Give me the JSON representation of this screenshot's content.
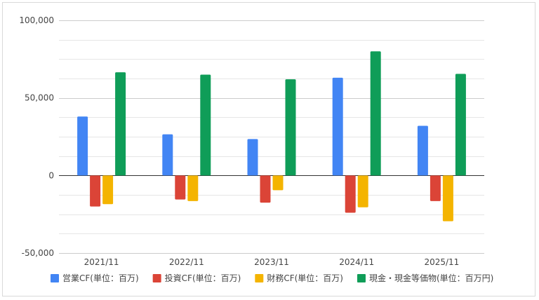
{
  "chart_data": {
    "type": "bar",
    "categories": [
      "2021/11",
      "2022/11",
      "2023/11",
      "2024/11",
      "2025/11"
    ],
    "series": [
      {
        "name": "営業CF(単位：百万)",
        "color": "#4285f4",
        "values": [
          38000,
          26500,
          23500,
          63000,
          32000
        ]
      },
      {
        "name": "投資CF(単位：百万)",
        "color": "#db4437",
        "values": [
          -20000,
          -15500,
          -17500,
          -24000,
          -16500
        ]
      },
      {
        "name": "財務CF(単位：百万)",
        "color": "#f4b400",
        "values": [
          -18500,
          -16500,
          -9500,
          -20500,
          -29500
        ]
      },
      {
        "name": "現金・現金等価物(単位：百万円)",
        "color": "#0f9d58",
        "values": [
          66500,
          65000,
          62000,
          80000,
          65500
        ]
      }
    ],
    "ylim": [
      -50000,
      100000
    ],
    "yticks": [
      {
        "value": 100000,
        "label": "100,000"
      },
      {
        "value": 50000,
        "label": "50,000"
      },
      {
        "value": 0,
        "label": "0"
      },
      {
        "value": -50000,
        "label": "-50,000"
      }
    ],
    "minor_grid_step": 12500,
    "grid": true,
    "legend_position": "bottom",
    "title": "",
    "xlabel": "",
    "ylabel": ""
  }
}
